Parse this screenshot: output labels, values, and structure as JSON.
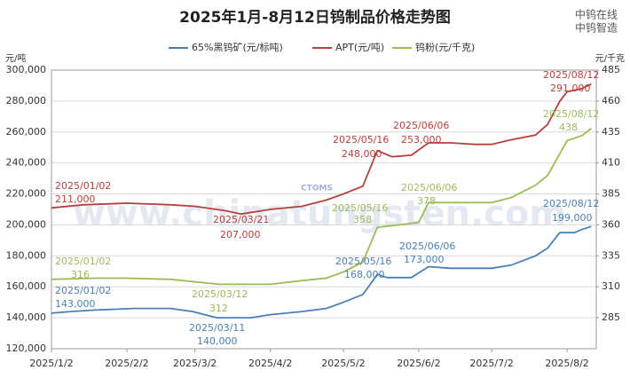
{
  "chart_data": {
    "type": "line",
    "title": "2025年1月-8月12日钨制品价格走势图",
    "brand": [
      "中钨在线",
      "中钨智造"
    ],
    "watermark": "www.chinatungsten.com",
    "watermark_logo": "CTOMS",
    "y_unit": "元/吨",
    "y2_unit": "元/千克",
    "xlim": [
      "2025/1/2",
      "2025/8/14"
    ],
    "xticks": [
      "2025/1/2",
      "2025/2/2",
      "2025/3/2",
      "2025/4/2",
      "2025/5/2",
      "2025/6/2",
      "2025/7/2",
      "2025/8/2"
    ],
    "ylim": [
      120000,
      300000
    ],
    "yticks": [
      {
        "value": 120000,
        "label": "120,000"
      },
      {
        "value": 140000,
        "label": "140,000"
      },
      {
        "value": 160000,
        "label": "160,000"
      },
      {
        "value": 180000,
        "label": "180,000"
      },
      {
        "value": 200000,
        "label": "200,000"
      },
      {
        "value": 220000,
        "label": "220,000"
      },
      {
        "value": 240000,
        "label": "240,000"
      },
      {
        "value": 260000,
        "label": "260,000"
      },
      {
        "value": 280000,
        "label": "280,000"
      },
      {
        "value": 300000,
        "label": "300,000"
      }
    ],
    "y2lim": [
      260,
      485
    ],
    "y2ticks": [
      285,
      310,
      335,
      360,
      385,
      410,
      435,
      460,
      485
    ],
    "grid": true,
    "series": [
      {
        "name": "65%黑钨矿(元/标吨)",
        "color": "#4a7fb5",
        "x": [
          "2025/1/2",
          "2025/1/10",
          "2025/1/20",
          "2025/2/5",
          "2025/2/20",
          "2025/3/1",
          "2025/3/11",
          "2025/3/25",
          "2025/4/2",
          "2025/4/15",
          "2025/4/25",
          "2025/5/2",
          "2025/5/10",
          "2025/5/16",
          "2025/5/20",
          "2025/5/30",
          "2025/6/6",
          "2025/6/15",
          "2025/6/25",
          "2025/7/2",
          "2025/7/10",
          "2025/7/20",
          "2025/7/25",
          "2025/7/30",
          "2025/8/5",
          "2025/8/8",
          "2025/8/12"
        ],
        "values": [
          143000,
          144000,
          145000,
          146000,
          146000,
          144000,
          140000,
          140000,
          142000,
          144000,
          146000,
          150000,
          155000,
          168000,
          166000,
          166000,
          173000,
          172000,
          172000,
          172000,
          174000,
          180000,
          185000,
          195000,
          195000,
          197000,
          199000
        ],
        "annotations": [
          {
            "date": "2025/01/02",
            "value": "143,000"
          },
          {
            "date": "2025/03/11",
            "value": "140,000"
          },
          {
            "date": "2025/05/16",
            "value": "168,000"
          },
          {
            "date": "2025/06/06",
            "value": "173,000"
          },
          {
            "date": "2025/08/12",
            "value": "199,000"
          }
        ]
      },
      {
        "name": "APT(元/吨)",
        "color": "#b5403c",
        "x": [
          "2025/1/2",
          "2025/1/15",
          "2025/2/2",
          "2025/2/20",
          "2025/3/2",
          "2025/3/15",
          "2025/3/21",
          "2025/4/2",
          "2025/4/15",
          "2025/4/25",
          "2025/5/2",
          "2025/5/10",
          "2025/5/16",
          "2025/5/22",
          "2025/5/30",
          "2025/6/6",
          "2025/6/15",
          "2025/6/25",
          "2025/7/2",
          "2025/7/10",
          "2025/7/20",
          "2025/7/25",
          "2025/7/30",
          "2025/8/2",
          "2025/8/8",
          "2025/8/12"
        ],
        "values": [
          211000,
          213000,
          214000,
          213000,
          212000,
          209000,
          207000,
          210000,
          212000,
          216000,
          220000,
          225000,
          248000,
          244000,
          245000,
          253000,
          253000,
          252000,
          252000,
          255000,
          258000,
          265000,
          280000,
          286000,
          288000,
          291000
        ],
        "annotations": [
          {
            "date": "2025/01/02",
            "value": "211,000"
          },
          {
            "date": "2025/03/21",
            "value": "207,000"
          },
          {
            "date": "2025/05/16",
            "value": "248,000"
          },
          {
            "date": "2025/06/06",
            "value": "253,000"
          },
          {
            "date": "2025/08/12",
            "value": "291,000"
          }
        ]
      },
      {
        "name": "钨粉(元/千克)",
        "color": "#9bbb59",
        "axis": "y2",
        "x": [
          "2025/1/2",
          "2025/1/20",
          "2025/2/2",
          "2025/2/20",
          "2025/3/2",
          "2025/3/12",
          "2025/3/25",
          "2025/4/2",
          "2025/4/15",
          "2025/4/25",
          "2025/5/2",
          "2025/5/10",
          "2025/5/16",
          "2025/5/25",
          "2025/6/2",
          "2025/6/6",
          "2025/6/15",
          "2025/6/25",
          "2025/7/2",
          "2025/7/10",
          "2025/7/20",
          "2025/7/25",
          "2025/8/2",
          "2025/8/8",
          "2025/8/12"
        ],
        "values": [
          316,
          317,
          317,
          316,
          314,
          312,
          312,
          312,
          315,
          317,
          322,
          330,
          358,
          360,
          362,
          378,
          378,
          378,
          378,
          382,
          392,
          400,
          428,
          432,
          438
        ],
        "annotations": [
          {
            "date": "2025/01/02",
            "value": "316"
          },
          {
            "date": "2025/03/12",
            "value": "312"
          },
          {
            "date": "2025/05/16",
            "value": "358"
          },
          {
            "date": "2025/06/06",
            "value": "378"
          },
          {
            "date": "2025/08/12",
            "value": "438"
          }
        ]
      }
    ]
  }
}
